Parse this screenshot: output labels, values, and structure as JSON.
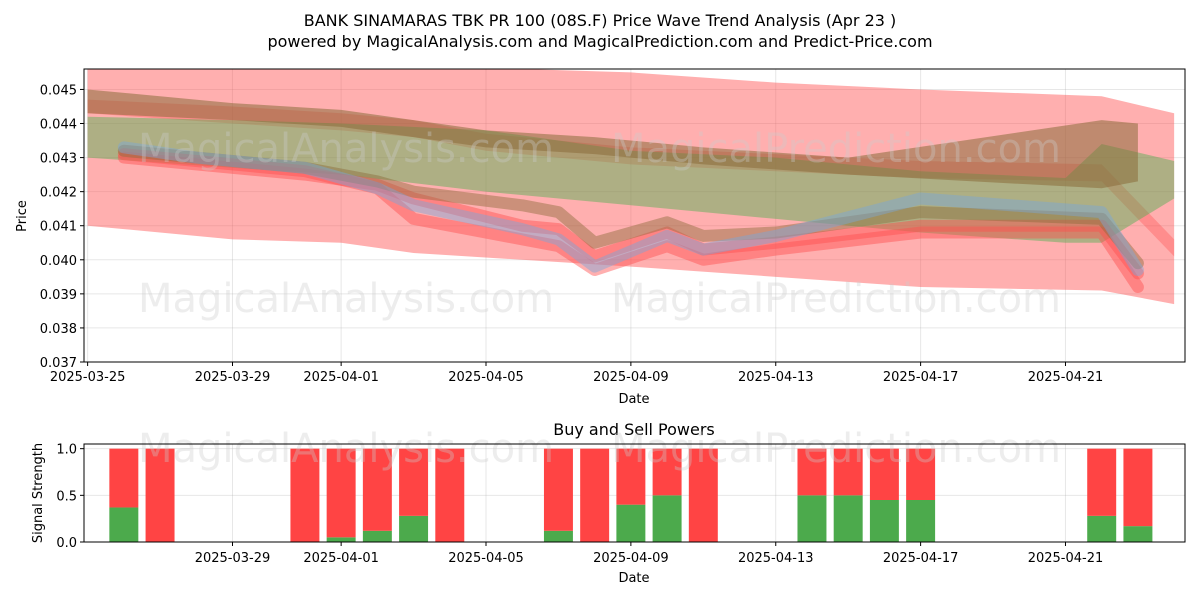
{
  "title_line1": "BANK SINAMARAS TBK PR 100 (08S.F) Price Wave Trend Analysis (Apr 23 )",
  "title_line2": "powered by MagicalAnalysis.com and MagicalPrediction.com and Predict-Price.com",
  "watermarks": [
    "MagicalAnalysis.com",
    "MagicalPrediction.com"
  ],
  "colors": {
    "red_band": "#ff4d4d",
    "green_band": "#4caf50",
    "brown_band": "#8b6b3a",
    "blue_band": "#7aa6d9",
    "sell_bar": "#ff4444",
    "buy_bar": "#4caa4c"
  },
  "chart_data": [
    {
      "type": "area",
      "title": "",
      "xlabel": "Date",
      "ylabel": "Price",
      "xlim": [
        "2025-03-25",
        "2025-04-24"
      ],
      "ylim": [
        0.037,
        0.0456
      ],
      "grid": true,
      "x_ticks": [
        "2025-03-25",
        "2025-03-29",
        "2025-04-01",
        "2025-04-05",
        "2025-04-09",
        "2025-04-13",
        "2025-04-17",
        "2025-04-21"
      ],
      "y_ticks": [
        "0.037",
        "0.038",
        "0.039",
        "0.040",
        "0.041",
        "0.042",
        "0.043",
        "0.044",
        "0.045"
      ],
      "bands": [
        {
          "color": "red",
          "opacity": 0.45,
          "x": [
            "2025-03-25",
            "2025-03-29",
            "2025-04-01",
            "2025-04-03",
            "2025-04-06",
            "2025-04-09",
            "2025-04-13",
            "2025-04-17",
            "2025-04-22",
            "2025-04-24"
          ],
          "upper": [
            0.0456,
            0.0456,
            0.0456,
            0.0456,
            0.0456,
            0.0455,
            0.0452,
            0.045,
            0.0448,
            0.0443
          ],
          "lower": [
            0.041,
            0.0406,
            0.0405,
            0.0402,
            0.04,
            0.0398,
            0.0395,
            0.0392,
            0.0391,
            0.0387
          ]
        },
        {
          "color": "red",
          "opacity": 0.35,
          "x": [
            "2025-03-25",
            "2025-03-29",
            "2025-04-01",
            "2025-04-03",
            "2025-04-05",
            "2025-04-09",
            "2025-04-13",
            "2025-04-17",
            "2025-04-22",
            "2025-04-24"
          ],
          "upper": [
            0.0447,
            0.0445,
            0.0443,
            0.0441,
            0.0437,
            0.0433,
            0.0431,
            0.0429,
            0.0428,
            0.0406
          ],
          "lower": [
            0.0443,
            0.044,
            0.0438,
            0.0436,
            0.0432,
            0.0428,
            0.0426,
            0.0424,
            0.0423,
            0.0401
          ]
        },
        {
          "color": "green",
          "opacity": 0.45,
          "x": [
            "2025-03-25",
            "2025-03-29",
            "2025-04-01",
            "2025-04-05",
            "2025-04-09",
            "2025-04-13",
            "2025-04-17",
            "2025-04-21",
            "2025-04-22",
            "2025-04-24"
          ],
          "upper": [
            0.0442,
            0.0441,
            0.044,
            0.0438,
            0.0432,
            0.043,
            0.0426,
            0.0424,
            0.0434,
            0.0429
          ],
          "lower": [
            0.043,
            0.0427,
            0.0425,
            0.042,
            0.0416,
            0.0412,
            0.0408,
            0.0405,
            0.0405,
            0.0418
          ]
        },
        {
          "color": "brown",
          "opacity": 0.55,
          "x": [
            "2025-03-25",
            "2025-03-29",
            "2025-04-01",
            "2025-04-03",
            "2025-04-05",
            "2025-04-08",
            "2025-04-11",
            "2025-04-15",
            "2025-04-22",
            "2025-04-23"
          ],
          "upper": [
            0.045,
            0.0446,
            0.0444,
            0.0441,
            0.0438,
            0.0436,
            0.0433,
            0.043,
            0.0441,
            0.044
          ],
          "lower": [
            0.0443,
            0.0441,
            0.0439,
            0.0436,
            0.0433,
            0.0431,
            0.0428,
            0.0425,
            0.0421,
            0.0423
          ]
        }
      ],
      "series": [
        {
          "color": "red",
          "x": [
            "2025-03-26",
            "2025-03-28",
            "2025-03-31",
            "2025-04-02",
            "2025-04-03",
            "2025-04-06",
            "2025-04-07",
            "2025-04-08",
            "2025-04-10",
            "2025-04-11",
            "2025-04-13",
            "2025-04-17",
            "2025-04-22",
            "2025-04-23"
          ],
          "values": [
            0.043,
            0.0428,
            0.0425,
            0.0422,
            0.0418,
            0.041,
            0.0409,
            0.0401,
            0.0408,
            0.0403,
            0.0405,
            0.041,
            0.041,
            0.0396
          ]
        },
        {
          "color": "red",
          "x": [
            "2025-03-26",
            "2025-03-28",
            "2025-03-31",
            "2025-04-02",
            "2025-04-03",
            "2025-04-06",
            "2025-04-07",
            "2025-04-08",
            "2025-04-10",
            "2025-04-11",
            "2025-04-13",
            "2025-04-17",
            "2025-04-22",
            "2025-04-23"
          ],
          "values": [
            0.0431,
            0.0429,
            0.0426,
            0.0421,
            0.0412,
            0.0406,
            0.0404,
            0.0397,
            0.0404,
            0.04,
            0.0403,
            0.0408,
            0.0408,
            0.0392
          ]
        },
        {
          "color": "brown",
          "x": [
            "2025-03-26",
            "2025-03-28",
            "2025-03-31",
            "2025-04-02",
            "2025-04-03",
            "2025-04-06",
            "2025-04-07",
            "2025-04-08",
            "2025-04-10",
            "2025-04-11",
            "2025-04-13",
            "2025-04-17",
            "2025-04-22",
            "2025-04-23"
          ],
          "values": [
            0.0432,
            0.043,
            0.0427,
            0.0423,
            0.042,
            0.0416,
            0.0414,
            0.0405,
            0.0411,
            0.0407,
            0.0408,
            0.0414,
            0.0412,
            0.0399
          ]
        },
        {
          "color": "blue",
          "x": [
            "2025-03-26",
            "2025-03-28",
            "2025-03-31",
            "2025-04-02",
            "2025-04-03",
            "2025-04-06",
            "2025-04-07",
            "2025-04-08",
            "2025-04-10",
            "2025-04-11",
            "2025-04-13",
            "2025-04-17",
            "2025-04-22",
            "2025-04-23"
          ],
          "values": [
            0.0433,
            0.043,
            0.0427,
            0.0421,
            0.0416,
            0.0409,
            0.0406,
            0.0398,
            0.0407,
            0.0403,
            0.0407,
            0.0418,
            0.0414,
            0.0397
          ]
        }
      ]
    },
    {
      "type": "bar",
      "title": "Buy and Sell Powers",
      "xlabel": "Date",
      "ylabel": "Signal Strength",
      "xlim": [
        "2025-03-25",
        "2025-04-24"
      ],
      "ylim": [
        0,
        1.05
      ],
      "grid": true,
      "x_ticks": [
        "2025-03-29",
        "2025-04-01",
        "2025-04-05",
        "2025-04-09",
        "2025-04-13",
        "2025-04-17",
        "2025-04-21"
      ],
      "y_ticks": [
        "0.0",
        "0.5",
        "1.0"
      ],
      "dates": [
        "2025-03-26",
        "2025-03-27",
        "2025-03-31",
        "2025-04-01",
        "2025-04-02",
        "2025-04-03",
        "2025-04-04",
        "2025-04-07",
        "2025-04-08",
        "2025-04-09",
        "2025-04-10",
        "2025-04-11",
        "2025-04-14",
        "2025-04-15",
        "2025-04-16",
        "2025-04-17",
        "2025-04-22",
        "2025-04-23"
      ],
      "buy": [
        0.37,
        0.0,
        0.0,
        0.05,
        0.12,
        0.28,
        0.0,
        0.12,
        0.0,
        0.4,
        0.5,
        0.0,
        0.5,
        0.5,
        0.45,
        0.45,
        0.28,
        0.17
      ],
      "sell": [
        0.63,
        1.0,
        1.0,
        0.95,
        0.88,
        0.72,
        1.0,
        0.88,
        1.0,
        0.6,
        0.5,
        1.0,
        0.5,
        0.5,
        0.55,
        0.55,
        0.72,
        0.83
      ]
    }
  ]
}
